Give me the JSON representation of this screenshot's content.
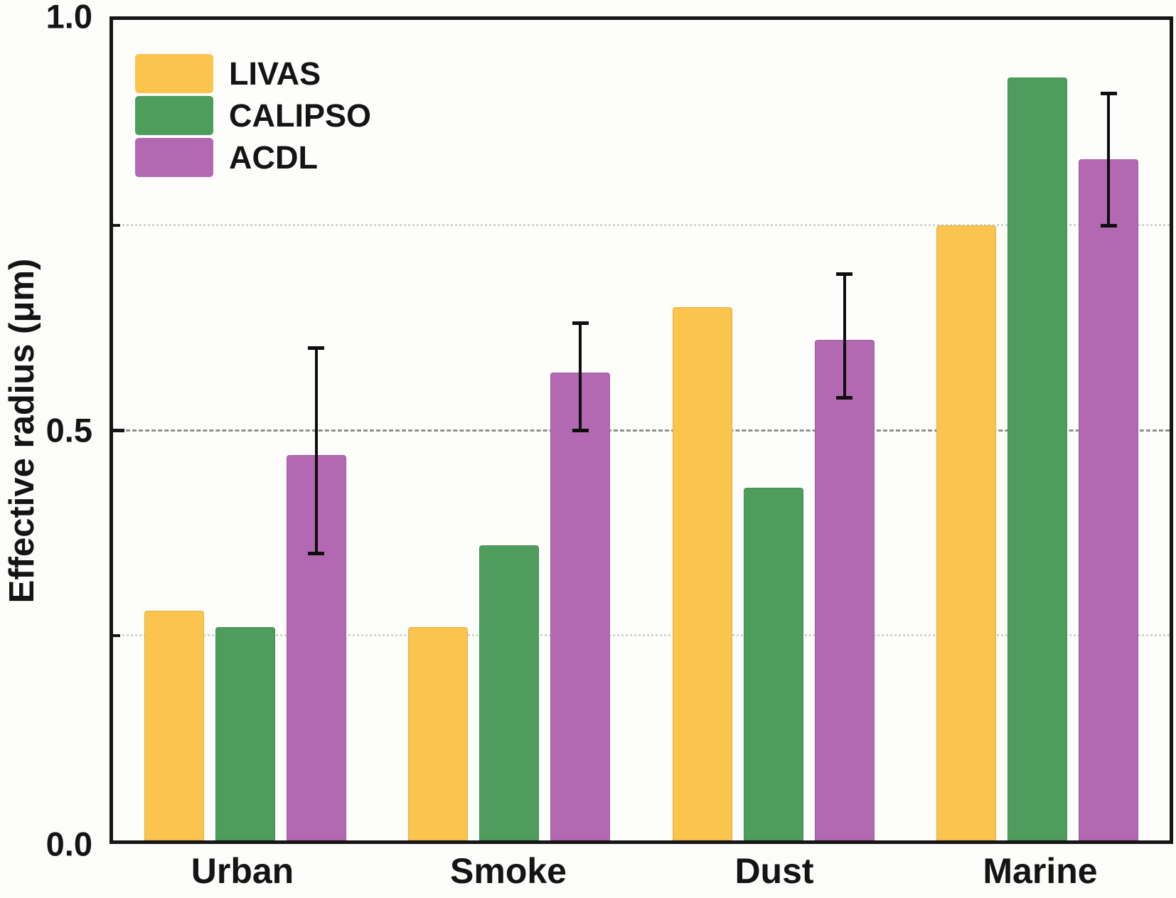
{
  "chart_data": {
    "type": "bar",
    "title": "",
    "xlabel": "",
    "ylabel": "Effective radius (μm)",
    "ylim": [
      0.0,
      1.0
    ],
    "y_major_ticks": [
      0.0,
      0.5,
      1.0
    ],
    "y_major_tick_labels": [
      "0.0",
      "0.5",
      "1.0"
    ],
    "y_minor_ticks": [
      0.25,
      0.75
    ],
    "gridlines": [
      {
        "value": 0.25,
        "style": "dotted"
      },
      {
        "value": 0.5,
        "style": "dashed"
      },
      {
        "value": 0.75,
        "style": "dotted"
      }
    ],
    "grid": "horizontal",
    "legend_position": "top-left",
    "categories": [
      "Urban",
      "Smoke",
      "Dust",
      "Marine"
    ],
    "series": [
      {
        "name": "LIVAS",
        "color": "#FBC54D",
        "values": [
          0.28,
          0.26,
          0.65,
          0.75
        ]
      },
      {
        "name": "CALIPSO",
        "color": "#4F9D5D",
        "values": [
          0.26,
          0.36,
          0.43,
          0.93
        ]
      },
      {
        "name": "ACDL",
        "color": "#B269B1",
        "values": [
          0.47,
          0.57,
          0.61,
          0.83
        ],
        "error_low": [
          0.35,
          0.5,
          0.54,
          0.75
        ],
        "error_high": [
          0.6,
          0.63,
          0.69,
          0.91
        ]
      }
    ],
    "axis_color": "#161616",
    "error_bar_color": "#0e0e0e"
  }
}
